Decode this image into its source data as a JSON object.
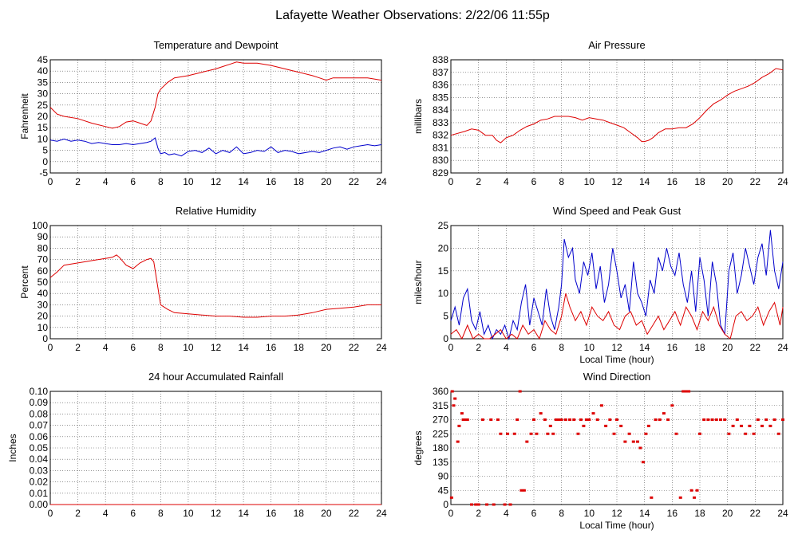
{
  "page": {
    "title": "Lafayette Weather Observations: 2/22/06 11:55p"
  },
  "colors": {
    "red": "#dd0000",
    "blue": "#0000cc",
    "grid": "#555555",
    "frame": "#000000"
  },
  "chart_data": [
    {
      "id": "temperature",
      "type": "line",
      "title": "Temperature and Dewpoint",
      "xlabel": "",
      "ylabel": "Fahrenheit",
      "xlim": [
        0,
        24
      ],
      "ylim": [
        -5,
        45
      ],
      "xticks": [
        0,
        2,
        4,
        6,
        8,
        10,
        12,
        14,
        16,
        18,
        20,
        22,
        24
      ],
      "yticks": [
        -5,
        0,
        5,
        10,
        15,
        20,
        25,
        30,
        35,
        40,
        45
      ],
      "grid": true,
      "series": [
        {
          "color": "#dd0000",
          "x": [
            0,
            0.5,
            1,
            2,
            3,
            4,
            4.5,
            5,
            5.5,
            6,
            6.5,
            7,
            7.3,
            7.6,
            7.8,
            8,
            8.5,
            9,
            10,
            11,
            12,
            12.5,
            13,
            13.5,
            14,
            15,
            16,
            17,
            18,
            19,
            19.5,
            20,
            20.5,
            21,
            22,
            23,
            24
          ],
          "y": [
            24,
            21,
            20,
            19,
            17,
            15.5,
            14.8,
            15.5,
            17.5,
            18,
            17,
            16,
            18,
            24,
            30,
            32,
            35,
            37,
            38,
            39.5,
            41,
            42,
            43,
            44,
            43.5,
            43.5,
            42.5,
            41,
            39.5,
            38,
            37,
            36,
            37,
            37,
            37,
            37,
            36
          ]
        },
        {
          "color": "#0000cc",
          "x": [
            0,
            0.5,
            1,
            1.5,
            2,
            2.5,
            3,
            3.5,
            4,
            4.5,
            5,
            5.5,
            6,
            6.5,
            7,
            7.3,
            7.6,
            7.8,
            8,
            8.3,
            8.6,
            9,
            9.5,
            10,
            10.5,
            11,
            11.5,
            12,
            12.5,
            13,
            13.5,
            14,
            14.5,
            15,
            15.5,
            16,
            16.5,
            17,
            17.5,
            18,
            18.5,
            19,
            19.5,
            20,
            20.5,
            21,
            21.5,
            22,
            22.5,
            23,
            23.5,
            24
          ],
          "y": [
            9.5,
            9,
            10,
            9,
            9.5,
            9,
            8,
            8.5,
            8,
            7.5,
            7.5,
            8,
            7.5,
            8,
            8.5,
            9,
            10.5,
            6,
            3.5,
            4,
            3,
            3.5,
            2.5,
            4.5,
            5,
            4,
            6,
            3.5,
            5,
            4,
            6.5,
            3.5,
            4,
            5,
            4.5,
            6.5,
            4,
            5,
            4.5,
            3.5,
            4,
            4.5,
            4,
            5,
            6,
            6.5,
            5.5,
            6.5,
            7,
            7.5,
            7,
            7.5
          ]
        }
      ]
    },
    {
      "id": "pressure",
      "type": "line",
      "title": "Air Pressure",
      "xlabel": "",
      "ylabel": "millibars",
      "xlim": [
        0,
        24
      ],
      "ylim": [
        829,
        838
      ],
      "xticks": [
        0,
        2,
        4,
        6,
        8,
        10,
        12,
        14,
        16,
        18,
        20,
        22,
        24
      ],
      "yticks": [
        829,
        830,
        831,
        832,
        833,
        834,
        835,
        836,
        837,
        838
      ],
      "grid": true,
      "series": [
        {
          "color": "#dd0000",
          "x": [
            0,
            1,
            1.5,
            2,
            2.5,
            3,
            3.3,
            3.6,
            4,
            4.5,
            5,
            5.5,
            6,
            6.5,
            7,
            7.5,
            8,
            8.5,
            9,
            9.5,
            10,
            10.5,
            11,
            11.5,
            12,
            12.5,
            13,
            13.5,
            13.8,
            14,
            14.3,
            14.6,
            15,
            15.5,
            16,
            16.5,
            17,
            17.5,
            18,
            18.5,
            19,
            19.5,
            20,
            20.5,
            21,
            21.5,
            22,
            22.5,
            23,
            23.5,
            24
          ],
          "y": [
            832,
            832.3,
            832.5,
            832.4,
            832,
            832,
            831.6,
            831.4,
            831.8,
            832,
            832.4,
            832.7,
            832.9,
            833.2,
            833.3,
            833.5,
            833.5,
            833.5,
            833.4,
            833.2,
            833.4,
            833.3,
            833.2,
            833.0,
            832.8,
            832.6,
            832.2,
            831.8,
            831.5,
            831.5,
            831.6,
            831.8,
            832.2,
            832.5,
            832.5,
            832.6,
            832.6,
            832.9,
            833.4,
            834.0,
            834.5,
            834.8,
            835.2,
            835.5,
            835.7,
            835.9,
            836.2,
            836.6,
            836.9,
            837.3,
            837.2
          ]
        }
      ]
    },
    {
      "id": "humidity",
      "type": "line",
      "title": "Relative Humidity",
      "xlabel": "",
      "ylabel": "Percent",
      "xlim": [
        0,
        24
      ],
      "ylim": [
        0,
        100
      ],
      "xticks": [
        0,
        2,
        4,
        6,
        8,
        10,
        12,
        14,
        16,
        18,
        20,
        22,
        24
      ],
      "yticks": [
        0,
        10,
        20,
        30,
        40,
        50,
        60,
        70,
        80,
        90,
        100
      ],
      "grid": true,
      "series": [
        {
          "color": "#dd0000",
          "x": [
            0,
            0.5,
            1,
            2,
            3,
            4,
            4.5,
            4.8,
            5,
            5.5,
            6,
            6.5,
            7,
            7.3,
            7.5,
            7.8,
            8,
            8.5,
            9,
            10,
            11,
            12,
            13,
            14,
            15,
            16,
            17,
            18,
            19,
            20,
            21,
            22,
            23,
            24
          ],
          "y": [
            54,
            59,
            65,
            67,
            69,
            71,
            72,
            74,
            72,
            65,
            62,
            67,
            70,
            71,
            68,
            45,
            30,
            26,
            23,
            22,
            21,
            20,
            20,
            19,
            19,
            20,
            20,
            21,
            23,
            26,
            27,
            28,
            30,
            30
          ]
        }
      ]
    },
    {
      "id": "wind-speed",
      "type": "line",
      "title": "Wind Speed and Peak Gust",
      "xlabel": "Local Time (hour)",
      "ylabel": "miles/hour",
      "xlim": [
        0,
        24
      ],
      "ylim": [
        0,
        25
      ],
      "xticks": [
        0,
        2,
        4,
        6,
        8,
        10,
        12,
        14,
        16,
        18,
        20,
        22,
        24
      ],
      "yticks": [
        0,
        5,
        10,
        15,
        20,
        25
      ],
      "grid": true,
      "series": [
        {
          "color": "#0000cc",
          "x": [
            0,
            0.3,
            0.6,
            0.9,
            1.2,
            1.5,
            1.8,
            2.1,
            2.4,
            2.7,
            3,
            3.3,
            3.6,
            3.9,
            4.2,
            4.5,
            4.8,
            5.1,
            5.4,
            5.7,
            6,
            6.3,
            6.6,
            6.9,
            7.2,
            7.5,
            7.8,
            8,
            8.2,
            8.5,
            8.8,
            9,
            9.3,
            9.6,
            9.9,
            10.2,
            10.5,
            10.8,
            11.1,
            11.4,
            11.7,
            12,
            12.3,
            12.6,
            12.9,
            13.2,
            13.5,
            13.8,
            14.1,
            14.4,
            14.7,
            15,
            15.3,
            15.6,
            15.9,
            16.2,
            16.5,
            16.8,
            17.1,
            17.4,
            17.7,
            18,
            18.3,
            18.6,
            18.9,
            19.2,
            19.5,
            19.8,
            20.1,
            20.4,
            20.7,
            21,
            21.3,
            21.6,
            21.9,
            22.2,
            22.5,
            22.8,
            23.1,
            23.4,
            23.7,
            24
          ],
          "y": [
            4,
            7,
            3,
            9,
            11,
            4,
            2,
            6,
            1,
            3,
            0,
            2,
            1,
            3,
            0,
            4,
            2,
            8,
            12,
            3,
            9,
            6,
            3,
            11,
            5,
            2,
            7,
            12,
            22,
            18,
            20,
            13,
            10,
            17,
            14,
            19,
            11,
            16,
            8,
            12,
            20,
            15,
            9,
            12,
            6,
            17,
            10,
            8,
            5,
            13,
            10,
            18,
            15,
            20,
            16,
            14,
            19,
            12,
            8,
            15,
            6,
            18,
            13,
            5,
            17,
            12,
            3,
            1,
            15,
            19,
            10,
            14,
            20,
            16,
            12,
            18,
            21,
            14,
            24,
            15,
            11,
            17
          ]
        },
        {
          "color": "#dd0000",
          "x": [
            0,
            0.4,
            0.8,
            1.2,
            1.6,
            2,
            2.4,
            2.8,
            3.2,
            3.6,
            4,
            4.4,
            4.8,
            5.2,
            5.6,
            6,
            6.4,
            6.8,
            7.2,
            7.6,
            8,
            8.3,
            8.6,
            9,
            9.4,
            9.8,
            10.2,
            10.6,
            11,
            11.4,
            11.8,
            12.2,
            12.6,
            13,
            13.4,
            13.8,
            14.2,
            14.6,
            15,
            15.4,
            15.8,
            16.2,
            16.6,
            17,
            17.4,
            17.8,
            18.2,
            18.6,
            19,
            19.4,
            19.8,
            20.2,
            20.6,
            21,
            21.4,
            21.8,
            22.2,
            22.6,
            23,
            23.4,
            23.8,
            24
          ],
          "y": [
            1,
            2,
            0,
            3,
            0,
            1,
            0,
            0,
            1,
            2,
            0,
            1,
            0,
            3,
            1,
            2,
            0,
            4,
            2,
            1,
            5,
            10,
            7,
            4,
            6,
            3,
            7,
            5,
            4,
            6,
            3,
            2,
            5,
            6,
            3,
            4,
            1,
            3,
            5,
            2,
            4,
            6,
            3,
            7,
            5,
            2,
            6,
            4,
            7,
            3,
            1,
            0,
            5,
            6,
            4,
            5,
            7,
            3,
            6,
            8,
            3,
            7
          ]
        }
      ]
    },
    {
      "id": "rainfall",
      "type": "line",
      "title": "24 hour Accumulated Rainfall",
      "xlabel": "",
      "ylabel": "Inches",
      "xlim": [
        0,
        24
      ],
      "ylim": [
        0,
        0.1
      ],
      "xticks": [
        0,
        2,
        4,
        6,
        8,
        10,
        12,
        14,
        16,
        18,
        20,
        22,
        24
      ],
      "yticks": [
        0.0,
        0.01,
        0.02,
        0.03,
        0.04,
        0.05,
        0.06,
        0.07,
        0.08,
        0.09,
        0.1
      ],
      "ytick_labels": [
        "0.00",
        "0.01",
        "0.02",
        "0.03",
        "0.04",
        "0.05",
        "0.06",
        "0.07",
        "0.08",
        "0.09",
        "0.10"
      ],
      "grid": true,
      "series": [
        {
          "color": "#dd0000",
          "x": [
            0,
            24
          ],
          "y": [
            0,
            0
          ]
        }
      ]
    },
    {
      "id": "wind-direction",
      "type": "scatter",
      "title": "Wind Direction",
      "xlabel": "Local Time (hour)",
      "ylabel": "degrees",
      "xlim": [
        0,
        24
      ],
      "ylim": [
        0,
        360
      ],
      "xticks": [
        0,
        2,
        4,
        6,
        8,
        10,
        12,
        14,
        16,
        18,
        20,
        22,
        24
      ],
      "yticks": [
        0,
        45,
        90,
        135,
        180,
        225,
        270,
        315,
        360
      ],
      "grid": true,
      "series": [
        {
          "color": "#dd0000",
          "x": [
            0.05,
            0.1,
            0.2,
            0.3,
            0.5,
            0.6,
            0.8,
            0.9,
            1.0,
            1.2,
            1.5,
            1.8,
            2.0,
            2.3,
            2.6,
            2.9,
            3.1,
            3.4,
            3.6,
            3.9,
            4.1,
            4.3,
            4.6,
            4.8,
            5.0,
            5.1,
            5.3,
            5.5,
            5.8,
            6.0,
            6.2,
            6.5,
            6.8,
            7.0,
            7.2,
            7.4,
            7.6,
            7.8,
            8.0,
            8.3,
            8.6,
            8.9,
            9.2,
            9.4,
            9.6,
            9.8,
            10.0,
            10.3,
            10.6,
            10.9,
            11.2,
            11.5,
            11.8,
            12.0,
            12.3,
            12.6,
            12.9,
            13.2,
            13.5,
            13.7,
            13.9,
            14.1,
            14.3,
            14.5,
            14.8,
            15.1,
            15.4,
            15.7,
            16.0,
            16.3,
            16.6,
            16.8,
            17.0,
            17.2,
            17.4,
            17.6,
            17.8,
            18.0,
            18.3,
            18.6,
            18.9,
            19.2,
            19.5,
            19.8,
            20.1,
            20.4,
            20.7,
            21.0,
            21.3,
            21.6,
            21.9,
            22.2,
            22.5,
            22.8,
            23.1,
            23.4,
            23.7,
            24.0
          ],
          "y": [
            22,
            360,
            315,
            337,
            200,
            250,
            290,
            270,
            270,
            270,
            0,
            0,
            0,
            270,
            0,
            270,
            0,
            270,
            225,
            0,
            225,
            0,
            225,
            270,
            360,
            45,
            45,
            200,
            225,
            270,
            225,
            290,
            270,
            225,
            250,
            225,
            270,
            270,
            270,
            270,
            270,
            270,
            225,
            270,
            250,
            270,
            270,
            290,
            270,
            315,
            250,
            270,
            225,
            270,
            250,
            200,
            225,
            200,
            200,
            180,
            135,
            225,
            250,
            22,
            270,
            270,
            290,
            270,
            315,
            225,
            22,
            360,
            360,
            360,
            45,
            22,
            45,
            225,
            270,
            270,
            270,
            270,
            270,
            270,
            225,
            250,
            270,
            250,
            225,
            250,
            225,
            270,
            250,
            270,
            250,
            270,
            225,
            270
          ]
        }
      ]
    }
  ]
}
